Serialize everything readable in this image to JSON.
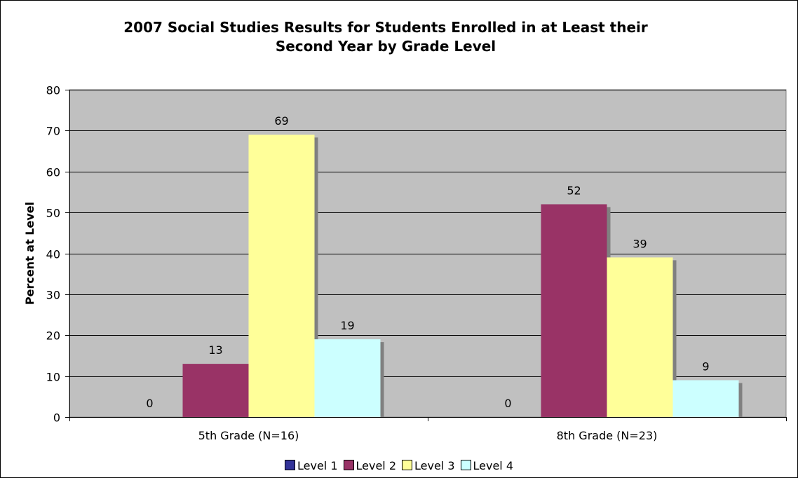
{
  "chart_data": {
    "type": "bar",
    "title_line1": "2007 Social Studies Results for Students Enrolled in at Least their",
    "title_line2": "Second Year by Grade Level",
    "xlabel": "",
    "ylabel": "Percent at Level",
    "ylim": [
      0,
      80
    ],
    "yticks": [
      "0",
      "10",
      "20",
      "30",
      "40",
      "50",
      "60",
      "70",
      "80"
    ],
    "grid": true,
    "legend_position": "bottom",
    "categories": [
      "5th Grade (N=16)",
      "8th Grade (N=23)"
    ],
    "series": [
      {
        "name": "Level 1",
        "color": "#333399",
        "values": [
          0,
          0
        ]
      },
      {
        "name": "Level 2",
        "color": "#993366",
        "values": [
          13,
          52
        ]
      },
      {
        "name": "Level 3",
        "color": "#FFFF99",
        "values": [
          69,
          39
        ]
      },
      {
        "name": "Level 4",
        "color": "#CCFFFF",
        "values": [
          19,
          9
        ]
      }
    ],
    "plot_background": "#C0C0C0",
    "shadow_color": "#808080"
  }
}
